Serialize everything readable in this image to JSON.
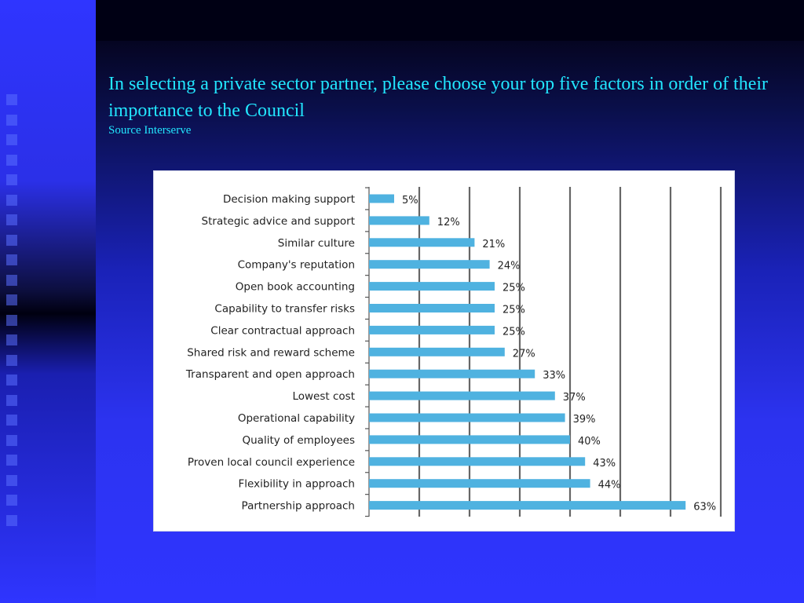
{
  "slide": {
    "title": "In selecting a private sector partner, please choose your top five factors in order of their importance to the Council",
    "source": "Source Interserve"
  },
  "colors": {
    "background": "#2f35ff",
    "title_text": "#22e6ff",
    "bar": "#4fb2e0",
    "gridline": "#666666"
  },
  "chart_data": {
    "type": "bar",
    "orientation": "horizontal",
    "categories": [
      "Decision making support",
      "Strategic advice and support",
      "Similar culture",
      "Company's reputation",
      "Open book accounting",
      "Capability to transfer risks",
      "Clear contractual approach",
      "Shared risk and reward scheme",
      "Transparent and open approach",
      "Lowest cost",
      "Operational capability",
      "Quality of employees",
      "Proven local council experience",
      "Flexibility in approach",
      "Partnership approach"
    ],
    "values": [
      5,
      12,
      21,
      24,
      25,
      25,
      25,
      27,
      33,
      37,
      39,
      40,
      43,
      44,
      63
    ],
    "data_labels": [
      "5%",
      "12%",
      "21%",
      "24%",
      "25%",
      "25%",
      "25%",
      "27%",
      "33%",
      "37%",
      "39%",
      "40%",
      "43%",
      "44%",
      "63%"
    ],
    "xlim": [
      0,
      70
    ],
    "grid": true,
    "gridline_step": 10,
    "legend": false
  }
}
